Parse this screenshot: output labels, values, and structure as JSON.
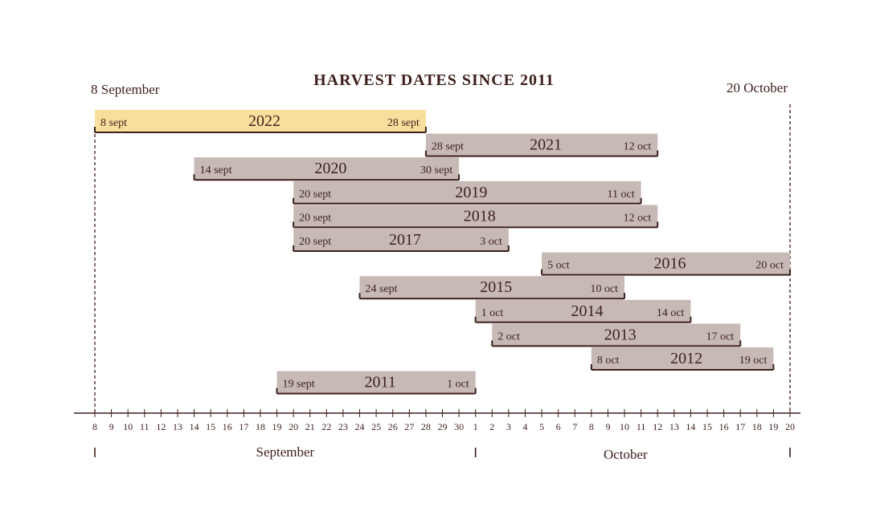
{
  "chart_data": {
    "type": "gantt",
    "title": "HARVEST DATES SINCE 2011",
    "range_start_label": "8 September",
    "range_end_label": "20 October",
    "x_range": [
      "8 September",
      "20 October"
    ],
    "colors": {
      "highlight_bar": "#f8df9c",
      "bar": "#c7bab6",
      "ink": "#3d1f1c"
    },
    "bars": [
      {
        "year": "2022",
        "start": "8 sept",
        "end": "28 sept",
        "highlight": true
      },
      {
        "year": "2021",
        "start": "28 sept",
        "end": "12 oct",
        "highlight": false
      },
      {
        "year": "2020",
        "start": "14 sept",
        "end": "30 sept",
        "highlight": false
      },
      {
        "year": "2019",
        "start": "20 sept",
        "end": "11 oct",
        "highlight": false
      },
      {
        "year": "2018",
        "start": "20 sept",
        "end": "12 oct",
        "highlight": false
      },
      {
        "year": "2017",
        "start": "20 sept",
        "end": "3 oct",
        "highlight": false
      },
      {
        "year": "2016",
        "start": "5 oct",
        "end": "20 oct",
        "highlight": false
      },
      {
        "year": "2015",
        "start": "24 sept",
        "end": "10 oct",
        "highlight": false
      },
      {
        "year": "2014",
        "start": "1 oct",
        "end": "14 oct",
        "highlight": false
      },
      {
        "year": "2013",
        "start": "2 oct",
        "end": "17 oct",
        "highlight": false
      },
      {
        "year": "2012",
        "start": "8 oct",
        "end": "19 oct",
        "highlight": false
      },
      {
        "year": "2011",
        "start": "19 sept",
        "end": "1 oct",
        "highlight": false
      }
    ],
    "tick_labels": [
      "8",
      "9",
      "10",
      "11",
      "12",
      "13",
      "14",
      "15",
      "16",
      "17",
      "18",
      "19",
      "20",
      "21",
      "22",
      "23",
      "24",
      "25",
      "26",
      "27",
      "28",
      "29",
      "30",
      "1",
      "2",
      "3",
      "4",
      "5",
      "6",
      "7",
      "8",
      "9",
      "10",
      "11",
      "12",
      "13",
      "14",
      "15",
      "16",
      "17",
      "18",
      "19",
      "20"
    ],
    "months": [
      "September",
      "October"
    ]
  }
}
